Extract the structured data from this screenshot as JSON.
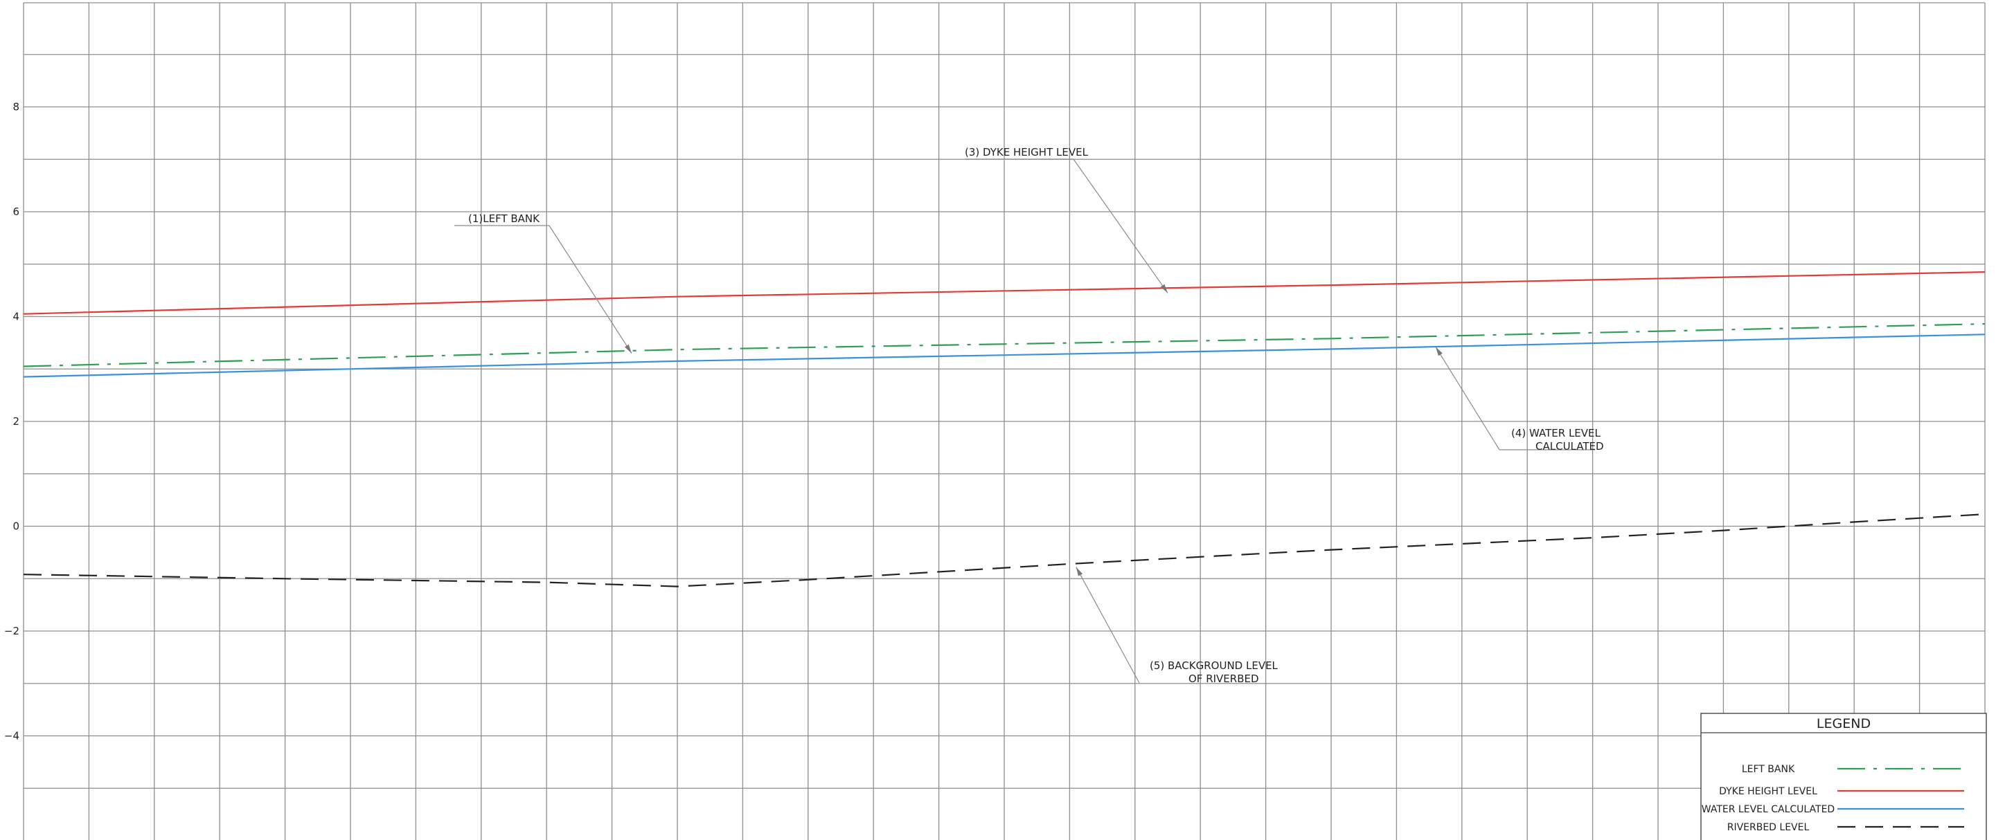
{
  "chart_data": {
    "type": "line",
    "title": "",
    "xlabel": "",
    "ylabel": "",
    "xlim": [
      0,
      30
    ],
    "ylim": [
      -6,
      10
    ],
    "y_ticks": [
      8,
      6,
      4,
      2,
      0,
      -2,
      -4
    ],
    "y_tick_labels": [
      "8",
      "6",
      "4",
      "2",
      "0",
      "−2",
      "−4"
    ],
    "grid": true,
    "legend_position": "bottom-right",
    "series": [
      {
        "name": "LEFT BANK",
        "color": "#2e9e54",
        "dash": "dash-dot",
        "x": [
          0,
          10,
          20,
          30
        ],
        "y": [
          3.05,
          3.37,
          3.58,
          3.86
        ]
      },
      {
        "name": "DYKE HEIGHT LEVEL",
        "color": "#e53935",
        "dash": "solid",
        "x": [
          0,
          10,
          20,
          30
        ],
        "y": [
          4.05,
          4.38,
          4.6,
          4.85
        ]
      },
      {
        "name": "WATER LEVEL CALCULATED",
        "color": "#3a8fe0",
        "dash": "solid",
        "x": [
          0,
          10,
          20,
          30
        ],
        "y": [
          2.85,
          3.15,
          3.38,
          3.66
        ]
      },
      {
        "name": "RIVERBED LEVEL",
        "color": "#222222",
        "dash": "dashed",
        "x": [
          0,
          4,
          8,
          10,
          12,
          16,
          20,
          24,
          26,
          28,
          30
        ],
        "y": [
          -0.92,
          -1.0,
          -1.07,
          -1.15,
          -1.02,
          -0.72,
          -0.45,
          -0.22,
          -0.08,
          0.08,
          0.23
        ]
      }
    ],
    "annotations": [
      {
        "lines": [
          "(1)LEFT BANK"
        ],
        "x": 9.3,
        "y": 3.3
      },
      {
        "lines": [
          "(3) DYKE HEIGHT LEVEL"
        ],
        "x": 17.5,
        "y": 4.45
      },
      {
        "lines": [
          "(4)   WATER LEVEL",
          "CALCULATED"
        ],
        "x": 21.6,
        "y": 3.42
      },
      {
        "lines": [
          "(5) BACKGROUND LEVEL",
          "OF RIVERBED"
        ],
        "x": 16.1,
        "y": -0.78
      }
    ],
    "legend": {
      "title": "LEGEND",
      "entries": [
        "LEFT BANK",
        "DYKE HEIGHT LEVEL",
        "WATER LEVEL CALCULATED",
        "RIVERBED LEVEL"
      ]
    }
  }
}
